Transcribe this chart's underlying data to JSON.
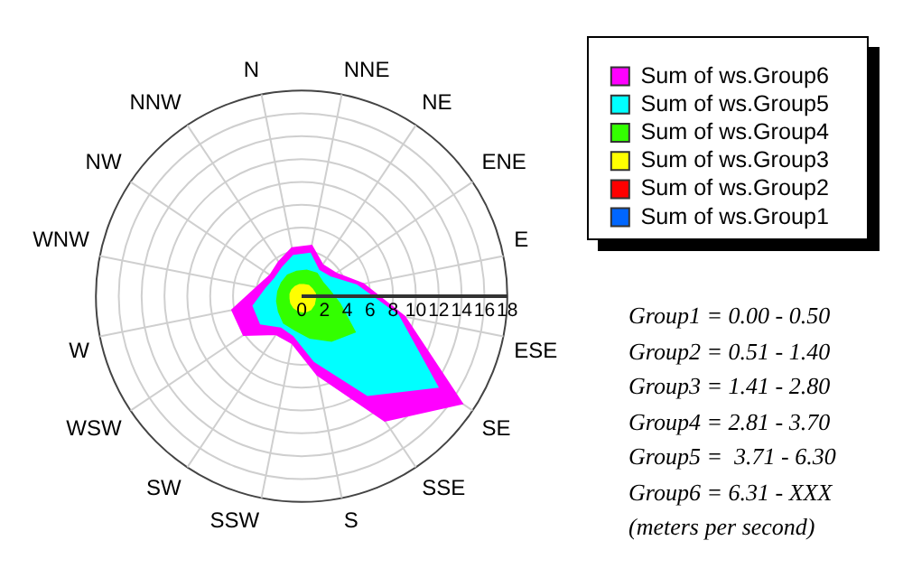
{
  "chart_data": {
    "type": "radar",
    "categories": [
      "N",
      "NNE",
      "NE",
      "ENE",
      "E",
      "ESE",
      "SE",
      "SSE",
      "S",
      "SSW",
      "SW",
      "WSW",
      "W",
      "WNW",
      "NW",
      "NNW"
    ],
    "series": [
      {
        "name": "Sum of ws.Group6",
        "color": "#ff00ff",
        "values": [
          4.3,
          4.5,
          3.3,
          3.6,
          5.5,
          9.2,
          16.9,
          13.1,
          7.0,
          4.2,
          4.0,
          6.1,
          6.2,
          4.0,
          3.3,
          3.6
        ]
      },
      {
        "name": "Sum of ws.Group5",
        "color": "#00ffff",
        "values": [
          3.6,
          3.8,
          2.7,
          3.0,
          4.9,
          8.6,
          14.3,
          10.4,
          5.8,
          3.5,
          3.2,
          4.3,
          4.3,
          3.2,
          2.8,
          3.0
        ]
      },
      {
        "name": "Sum of ws.Group4",
        "color": "#33ff00",
        "values": [
          2.2,
          2.3,
          2.4,
          2.2,
          2.5,
          3.4,
          5.6,
          4.7,
          3.7,
          3.0,
          2.8,
          2.4,
          2.2,
          2.1,
          2.1,
          2.2
        ]
      },
      {
        "name": "Sum of ws.Group3",
        "color": "#ffff00",
        "values": [
          1.0,
          1.0,
          1.1,
          1.1,
          1.2,
          1.2,
          1.3,
          1.4,
          1.4,
          1.3,
          1.2,
          1.1,
          1.0,
          1.0,
          1.0,
          1.0
        ]
      },
      {
        "name": "Sum of ws.Group2",
        "color": "#ff0000",
        "values": [
          null,
          null,
          null,
          null,
          null,
          null,
          null,
          null,
          null,
          null,
          null,
          null,
          null,
          null,
          null,
          null
        ]
      },
      {
        "name": "Sum of ws.Group1",
        "color": "#0066ff",
        "values": [
          null,
          null,
          null,
          null,
          null,
          null,
          null,
          null,
          null,
          null,
          null,
          null,
          null,
          null,
          null,
          null
        ]
      }
    ],
    "ylim": [
      0,
      18
    ],
    "yticks": [
      0,
      2,
      4,
      6,
      8,
      10,
      12,
      14,
      16,
      18
    ],
    "grid": true,
    "legend": "top right",
    "annotations": [
      "Group1 = 0.00 - 0.50",
      "Group2 = 0.51 - 1.40",
      "Group3 = 1.41 - 2.80",
      "Group4 = 2.81 - 3.70",
      "Group5 =  3.71 - 6.30",
      "Group6 = 6.31 - XXX",
      "(meters per second)"
    ]
  }
}
